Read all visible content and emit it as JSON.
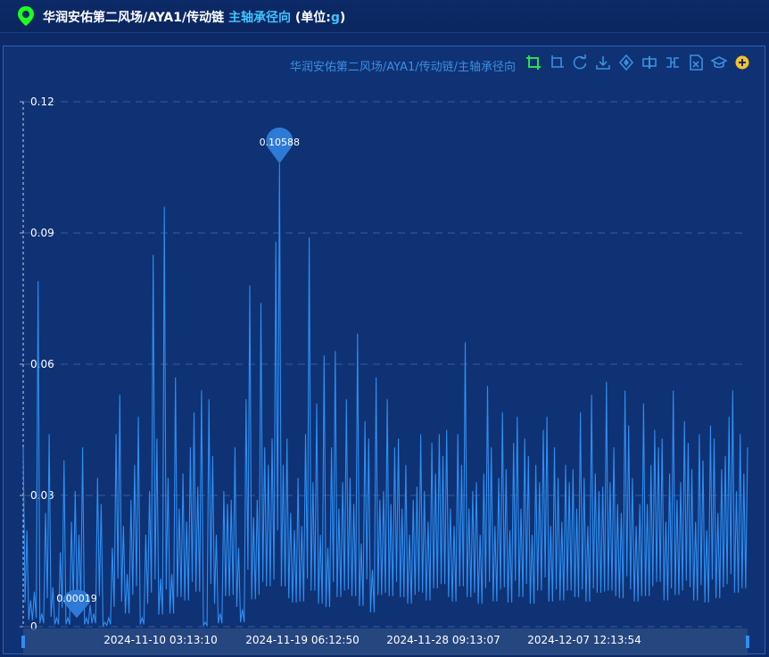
{
  "header": {
    "title_path": "华润安佑第二风场/AYA1/传动链",
    "title_measure": "主轴承径向",
    "unit_prefix": "(单位:",
    "unit_value": "g",
    "unit_suffix": ")"
  },
  "toolbar": {
    "icons": [
      "crop-icon",
      "crop-reset-icon",
      "refresh-icon",
      "download-icon",
      "diamond-icon",
      "split-h-icon",
      "split-v-icon",
      "file-x-icon",
      "graduation-cap-icon",
      "plus-circle-icon"
    ]
  },
  "colors": {
    "line": "#2e8ef0",
    "accent": "#3fc4ff",
    "grid": "#3b5a9a",
    "pin": "#1eff1e"
  },
  "chart_data": {
    "type": "line",
    "title": "华润安佑第二风场/AYA1/传动链/主轴承径向",
    "ylim": [
      0,
      0.12
    ],
    "yticks": [
      "0",
      "0.03",
      "0.06",
      "0.09",
      "0.12"
    ],
    "xticks": [
      "2024-11-10 03:13:10",
      "2024-11-19 06:12:50",
      "2024-11-28 09:13:07",
      "2024-12-07 12:13:54"
    ],
    "x_start": "2024-11-01",
    "x_end": "2024-12-14",
    "max_label": "0.10588",
    "min_label": "0.00019",
    "series": [
      {
        "values": [
          0.041,
          0.022,
          0.006,
          0.008,
          0.079,
          0.003,
          0.026,
          0.044,
          0.009,
          0.002,
          0.017,
          0.038,
          0.002,
          0.024,
          0.031,
          0.021,
          0.041,
          0.002,
          0.005,
          0.003,
          0.034,
          0.028,
          0.001,
          0.002,
          0.018,
          0.044,
          0.053,
          0.023,
          0.012,
          0.029,
          0.037,
          0.048,
          0.002,
          0.021,
          0.031,
          0.085,
          0.043,
          0.011,
          0.096,
          0.034,
          0.012,
          0.057,
          0.027,
          0.035,
          0.024,
          0.041,
          0.049,
          0.032,
          0.054,
          0.001,
          0.052,
          0.039,
          0.021,
          0.003,
          0.031,
          0.028,
          0.029,
          0.041,
          0.018,
          0.004,
          0.052,
          0.078,
          0.025,
          0.029,
          0.074,
          0.041,
          0.037,
          0.043,
          0.088,
          0.1059,
          0.037,
          0.043,
          0.026,
          0.022,
          0.034,
          0.023,
          0.044,
          0.089,
          0.033,
          0.051,
          0.021,
          0.062,
          0.018,
          0.041,
          0.063,
          0.027,
          0.033,
          0.052,
          0.034,
          0.028,
          0.067,
          0.019,
          0.047,
          0.043,
          0.013,
          0.057,
          0.029,
          0.031,
          0.052,
          0.028,
          0.041,
          0.043,
          0.027,
          0.037,
          0.021,
          0.029,
          0.032,
          0.044,
          0.031,
          0.024,
          0.042,
          0.035,
          0.044,
          0.039,
          0.045,
          0.027,
          0.023,
          0.044,
          0.037,
          0.065,
          0.027,
          0.031,
          0.033,
          0.021,
          0.035,
          0.055,
          0.041,
          0.023,
          0.034,
          0.049,
          0.036,
          0.022,
          0.042,
          0.048,
          0.027,
          0.043,
          0.039,
          0.021,
          0.037,
          0.033,
          0.045,
          0.048,
          0.023,
          0.041,
          0.034,
          0.024,
          0.037,
          0.033,
          0.036,
          0.027,
          0.049,
          0.034,
          0.023,
          0.053,
          0.035,
          0.031,
          0.032,
          0.056,
          0.033,
          0.041,
          0.028,
          0.026,
          0.054,
          0.046,
          0.034,
          0.023,
          0.028,
          0.051,
          0.028,
          0.037,
          0.045,
          0.041,
          0.043,
          0.024,
          0.035,
          0.054,
          0.029,
          0.033,
          0.047,
          0.042,
          0.036,
          0.024,
          0.044,
          0.038,
          0.022,
          0.046,
          0.043,
          0.026,
          0.036,
          0.039,
          0.048,
          0.054,
          0.031,
          0.044,
          0.035,
          0.041
        ]
      }
    ]
  }
}
